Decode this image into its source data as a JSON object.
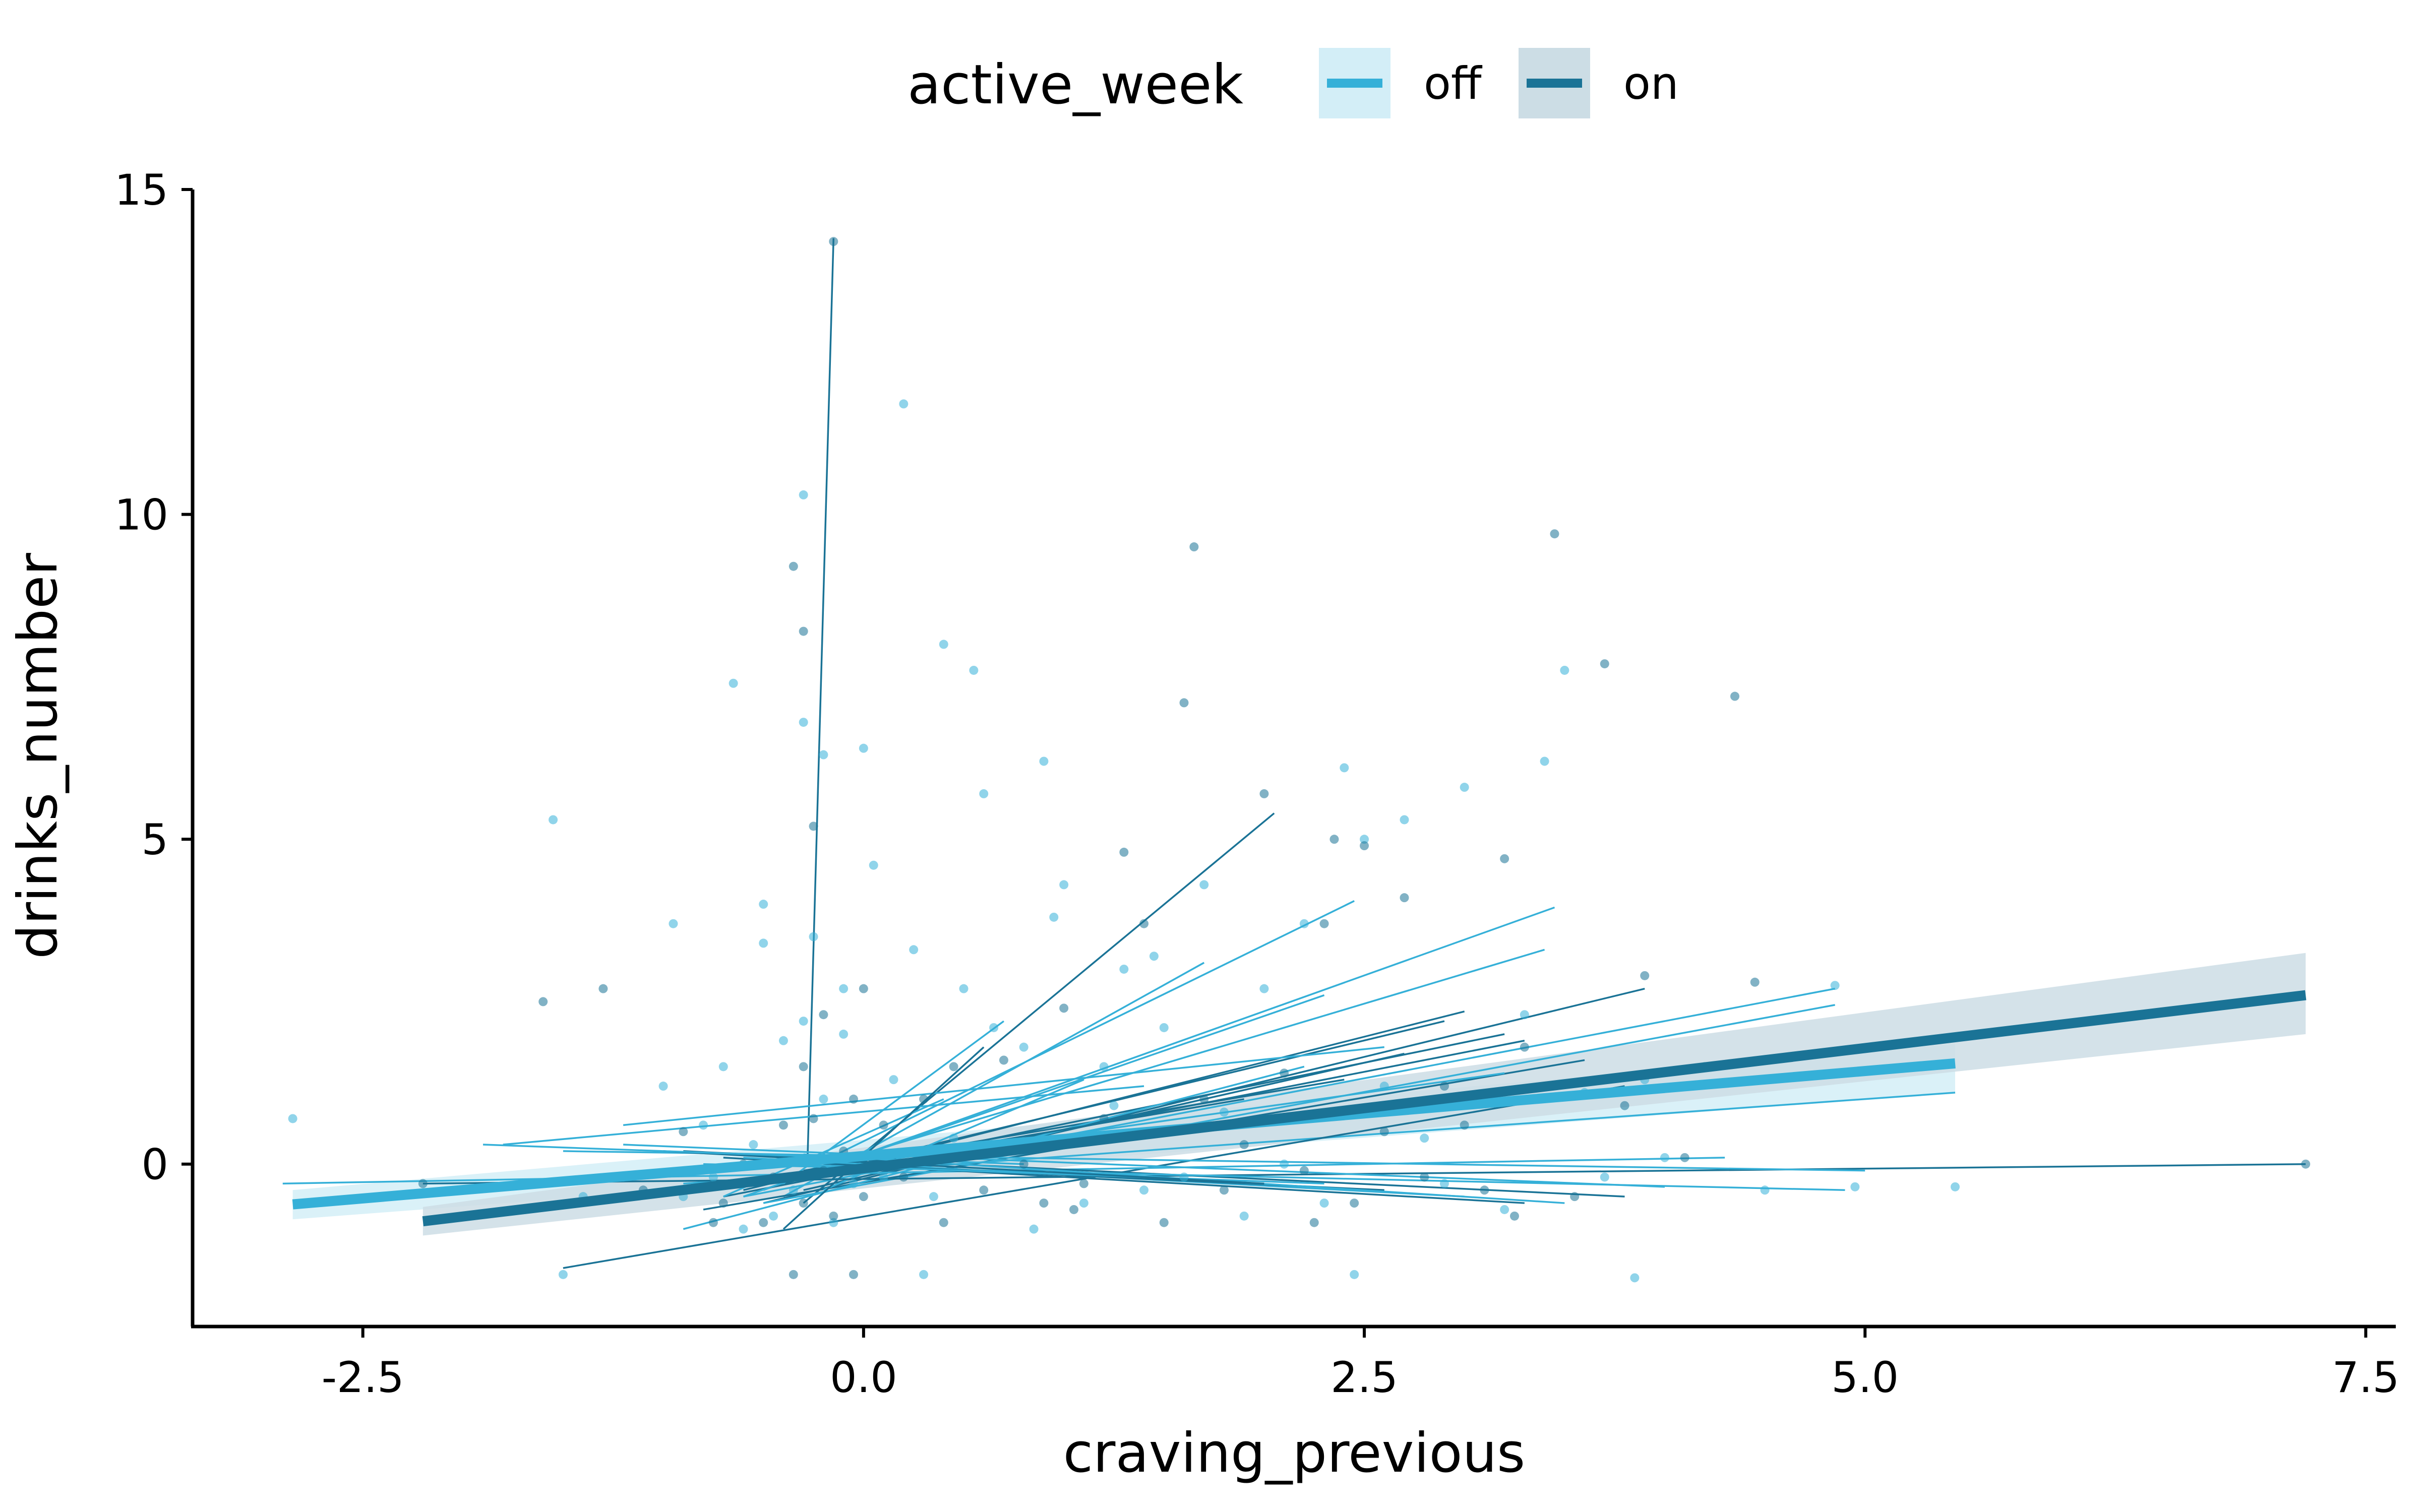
{
  "chart_data": {
    "type": "scatter",
    "xlabel": "craving_previous",
    "ylabel": "drinks_number",
    "xlim": [
      -3.35,
      7.65
    ],
    "ylim": [
      -2.5,
      15
    ],
    "x_ticks": [
      "-2.5",
      "0.0",
      "2.5",
      "5.0",
      "7.5"
    ],
    "x_tick_values": [
      -2.5,
      0,
      2.5,
      5,
      7.5
    ],
    "y_ticks": [
      "0",
      "5",
      "10",
      "15"
    ],
    "y_tick_values": [
      0,
      5,
      10,
      15
    ],
    "grid": false,
    "legend": {
      "title": "active_week",
      "position": "top",
      "entries": [
        {
          "label": "off",
          "color": "#35B0D8",
          "band_color": "#D3EEF7"
        },
        {
          "label": "on",
          "color": "#1A7396",
          "band_color": "#CCDDE5"
        }
      ]
    },
    "series": [
      {
        "name": "off",
        "color": "#35B0D8",
        "fit": {
          "x": [
            -2.85,
            5.45
          ],
          "y": [
            -0.62,
            1.55
          ],
          "band_lower_end": [
            -0.85,
            1.1
          ],
          "band_upper_end": [
            -0.4,
            1.85
          ]
        },
        "points": [
          [
            -2.85,
            0.7
          ],
          [
            -1.55,
            5.3
          ],
          [
            -1.5,
            -1.7
          ],
          [
            -1.4,
            -0.5
          ],
          [
            -1.2,
            -0.2
          ],
          [
            -1.0,
            1.2
          ],
          [
            -0.95,
            3.7
          ],
          [
            -0.9,
            -0.5
          ],
          [
            -0.8,
            0.6
          ],
          [
            -0.75,
            -0.2
          ],
          [
            -0.7,
            1.5
          ],
          [
            -0.65,
            7.4
          ],
          [
            -0.6,
            -1.0
          ],
          [
            -0.55,
            0.3
          ],
          [
            -0.5,
            4.0
          ],
          [
            -0.5,
            3.4
          ],
          [
            -0.45,
            -0.8
          ],
          [
            -0.4,
            1.9
          ],
          [
            -0.35,
            -0.4
          ],
          [
            -0.3,
            2.2
          ],
          [
            -0.3,
            10.3
          ],
          [
            -0.3,
            6.8
          ],
          [
            -0.25,
            3.5
          ],
          [
            -0.2,
            1.0
          ],
          [
            -0.15,
            -0.9
          ],
          [
            -0.1,
            2.0
          ],
          [
            -0.05,
            -0.3
          ],
          [
            0.0,
            6.4
          ],
          [
            0.05,
            4.6
          ],
          [
            0.1,
            -0.2
          ],
          [
            0.2,
            11.7
          ],
          [
            0.25,
            3.3
          ],
          [
            0.3,
            -1.7
          ],
          [
            0.35,
            -0.5
          ],
          [
            0.4,
            8.0
          ],
          [
            0.45,
            0.4
          ],
          [
            0.5,
            2.7
          ],
          [
            0.55,
            7.6
          ],
          [
            0.6,
            5.7
          ],
          [
            0.7,
            0.3
          ],
          [
            0.8,
            1.8
          ],
          [
            0.9,
            6.2
          ],
          [
            0.95,
            3.8
          ],
          [
            1.0,
            4.3
          ],
          [
            1.1,
            -0.6
          ],
          [
            1.2,
            1.5
          ],
          [
            1.3,
            3.0
          ],
          [
            1.4,
            -0.4
          ],
          [
            1.5,
            2.1
          ],
          [
            1.6,
            -0.2
          ],
          [
            1.7,
            4.3
          ],
          [
            1.8,
            0.8
          ],
          [
            1.9,
            -0.8
          ],
          [
            2.0,
            2.7
          ],
          [
            2.1,
            0.0
          ],
          [
            2.2,
            3.7
          ],
          [
            2.3,
            -0.6
          ],
          [
            2.4,
            6.1
          ],
          [
            2.45,
            -1.7
          ],
          [
            2.5,
            5.0
          ],
          [
            2.6,
            1.2
          ],
          [
            2.7,
            5.3
          ],
          [
            2.8,
            0.4
          ],
          [
            2.9,
            -0.3
          ],
          [
            3.0,
            5.8
          ],
          [
            3.1,
            1.0
          ],
          [
            3.2,
            -0.7
          ],
          [
            3.3,
            2.3
          ],
          [
            3.4,
            6.2
          ],
          [
            3.5,
            7.6
          ],
          [
            3.6,
            1.1
          ],
          [
            3.7,
            -0.2
          ],
          [
            3.85,
            -1.75
          ],
          [
            3.9,
            1.3
          ],
          [
            4.0,
            0.1
          ],
          [
            4.2,
            1.5
          ],
          [
            4.5,
            -0.4
          ],
          [
            4.85,
            2.75
          ],
          [
            4.95,
            -0.35
          ],
          [
            5.45,
            -0.35
          ],
          [
            -0.2,
            6.3
          ],
          [
            -0.1,
            2.7
          ],
          [
            0.15,
            1.3
          ],
          [
            0.65,
            2.1
          ],
          [
            0.85,
            -1.0
          ],
          [
            1.25,
            0.9
          ],
          [
            1.45,
            3.2
          ]
        ]
      },
      {
        "name": "on",
        "color": "#1A7396",
        "fit": {
          "x": [
            -2.2,
            7.2
          ],
          "y": [
            -0.88,
            2.6
          ],
          "band_lower_end": [
            -1.1,
            2.0
          ],
          "band_upper_end": [
            -0.66,
            3.25
          ]
        },
        "points": [
          [
            -2.2,
            -0.3
          ],
          [
            -1.6,
            2.5
          ],
          [
            -1.3,
            2.7
          ],
          [
            -1.1,
            -0.4
          ],
          [
            -0.9,
            0.5
          ],
          [
            -0.75,
            -0.9
          ],
          [
            -0.7,
            -0.6
          ],
          [
            -0.6,
            0.0
          ],
          [
            -0.5,
            -0.9
          ],
          [
            -0.45,
            -0.2
          ],
          [
            -0.4,
            0.6
          ],
          [
            -0.35,
            9.2
          ],
          [
            -0.35,
            -1.7
          ],
          [
            -0.3,
            8.2
          ],
          [
            -0.3,
            1.5
          ],
          [
            -0.3,
            -0.6
          ],
          [
            -0.25,
            0.7
          ],
          [
            -0.2,
            2.3
          ],
          [
            -0.2,
            -0.1
          ],
          [
            -0.15,
            -0.8
          ],
          [
            -0.1,
            0.2
          ],
          [
            -0.05,
            1.0
          ],
          [
            -0.05,
            -1.7
          ],
          [
            0.0,
            -0.5
          ],
          [
            0.1,
            0.6
          ],
          [
            0.2,
            -0.2
          ],
          [
            0.3,
            1.0
          ],
          [
            0.4,
            -0.9
          ],
          [
            0.5,
            0.2
          ],
          [
            0.6,
            -0.4
          ],
          [
            0.7,
            1.6
          ],
          [
            0.8,
            0.0
          ],
          [
            0.9,
            -0.6
          ],
          [
            1.0,
            2.4
          ],
          [
            1.1,
            -0.3
          ],
          [
            1.2,
            0.7
          ],
          [
            1.3,
            4.8
          ],
          [
            1.4,
            3.7
          ],
          [
            1.5,
            -0.9
          ],
          [
            1.6,
            7.1
          ],
          [
            1.65,
            9.5
          ],
          [
            1.7,
            1.0
          ],
          [
            1.8,
            -0.4
          ],
          [
            1.9,
            0.3
          ],
          [
            2.0,
            5.7
          ],
          [
            2.1,
            1.4
          ],
          [
            2.2,
            -0.1
          ],
          [
            2.3,
            3.7
          ],
          [
            2.35,
            5.0
          ],
          [
            2.45,
            -0.6
          ],
          [
            2.5,
            4.9
          ],
          [
            2.6,
            0.5
          ],
          [
            2.7,
            4.1
          ],
          [
            2.8,
            -0.2
          ],
          [
            2.9,
            1.2
          ],
          [
            3.0,
            0.6
          ],
          [
            3.1,
            -0.4
          ],
          [
            3.2,
            4.7
          ],
          [
            3.3,
            1.8
          ],
          [
            3.45,
            9.7
          ],
          [
            3.55,
            -0.5
          ],
          [
            3.7,
            7.7
          ],
          [
            3.8,
            0.9
          ],
          [
            3.9,
            2.9
          ],
          [
            4.1,
            0.1
          ],
          [
            4.35,
            7.2
          ],
          [
            4.45,
            2.8
          ],
          [
            7.2,
            0.0
          ],
          [
            -0.15,
            14.2
          ],
          [
            -0.25,
            5.2
          ],
          [
            0.0,
            2.7
          ],
          [
            0.45,
            1.5
          ],
          [
            1.05,
            -0.7
          ],
          [
            2.25,
            -0.9
          ],
          [
            3.25,
            -0.8
          ]
        ]
      }
    ],
    "lines": [
      {
        "group": "on",
        "x": [
          -0.28,
          -0.15
        ],
        "y": [
          0.05,
          14.25
        ]
      },
      {
        "group": "on",
        "x": [
          -0.3,
          2.05
        ],
        "y": [
          -0.6,
          5.4
        ]
      },
      {
        "group": "off",
        "x": [
          -0.2,
          2.45
        ],
        "y": [
          0.05,
          4.05
        ]
      },
      {
        "group": "off",
        "x": [
          -0.5,
          3.45
        ],
        "y": [
          -0.4,
          3.95
        ]
      },
      {
        "group": "off",
        "x": [
          -0.5,
          3.4
        ],
        "y": [
          -0.3,
          3.3
        ]
      },
      {
        "group": "off",
        "x": [
          -0.4,
          1.7
        ],
        "y": [
          -0.5,
          3.1
        ]
      },
      {
        "group": "on",
        "x": [
          -0.5,
          3.9
        ],
        "y": [
          -0.6,
          2.7
        ]
      },
      {
        "group": "off",
        "x": [
          -0.6,
          4.85
        ],
        "y": [
          -0.5,
          2.7
        ]
      },
      {
        "group": "off",
        "x": [
          -0.5,
          4.85
        ],
        "y": [
          -0.6,
          2.45
        ]
      },
      {
        "group": "on",
        "x": [
          -0.4,
          3.0
        ],
        "y": [
          -0.3,
          2.35
        ]
      },
      {
        "group": "on",
        "x": [
          -0.6,
          2.9
        ],
        "y": [
          -0.4,
          2.2
        ]
      },
      {
        "group": "on",
        "x": [
          -0.3,
          3.2
        ],
        "y": [
          -0.2,
          2.0
        ]
      },
      {
        "group": "on",
        "x": [
          -0.7,
          3.3
        ],
        "y": [
          -0.5,
          1.9
        ]
      },
      {
        "group": "off",
        "x": [
          -0.6,
          2.3
        ],
        "y": [
          -0.5,
          2.6
        ]
      },
      {
        "group": "on",
        "x": [
          -0.3,
          2.7
        ],
        "y": [
          -0.4,
          1.7
        ]
      },
      {
        "group": "on",
        "x": [
          -0.8,
          3.6
        ],
        "y": [
          -0.7,
          1.6
        ]
      },
      {
        "group": "off",
        "x": [
          -0.5,
          3.2
        ],
        "y": [
          -0.2,
          1.4
        ]
      },
      {
        "group": "off",
        "x": [
          -0.9,
          5.45
        ],
        "y": [
          -0.3,
          1.1
        ]
      },
      {
        "group": "on",
        "x": [
          -0.3,
          2.4
        ],
        "y": [
          -0.1,
          1.3
        ]
      },
      {
        "group": "off",
        "x": [
          -1.2,
          2.6
        ],
        "y": [
          0.6,
          1.8
        ]
      },
      {
        "group": "off",
        "x": [
          -1.8,
          1.4
        ],
        "y": [
          0.3,
          1.2
        ]
      },
      {
        "group": "on",
        "x": [
          -1.5,
          3.8
        ],
        "y": [
          -1.6,
          1.2
        ]
      },
      {
        "group": "off",
        "x": [
          -0.9,
          2.2
        ],
        "y": [
          -1.0,
          1.5
        ]
      },
      {
        "group": "on",
        "x": [
          -0.6,
          1.9
        ],
        "y": [
          -0.3,
          1.0
        ]
      },
      {
        "group": "off",
        "x": [
          -0.4,
          0.7
        ],
        "y": [
          -0.3,
          2.2
        ]
      },
      {
        "group": "off",
        "x": [
          -0.7,
          0.4
        ],
        "y": [
          -0.5,
          1.0
        ]
      },
      {
        "group": "off",
        "x": [
          -0.2,
          1.1
        ],
        "y": [
          -0.4,
          1.3
        ]
      },
      {
        "group": "on",
        "x": [
          -0.4,
          0.6
        ],
        "y": [
          -1.0,
          1.8
        ]
      },
      {
        "group": "on",
        "x": [
          -2.2,
          7.2
        ],
        "y": [
          -0.3,
          0.0
        ]
      },
      {
        "group": "off",
        "x": [
          -2.9,
          4.3
        ],
        "y": [
          -0.3,
          0.1
        ]
      },
      {
        "group": "off",
        "x": [
          -1.5,
          5.0
        ],
        "y": [
          0.2,
          -0.1
        ]
      },
      {
        "group": "off",
        "x": [
          -1.2,
          4.0
        ],
        "y": [
          0.3,
          -0.35
        ]
      },
      {
        "group": "on",
        "x": [
          -0.9,
          3.8
        ],
        "y": [
          0.2,
          -0.5
        ]
      },
      {
        "group": "off",
        "x": [
          -0.8,
          4.9
        ],
        "y": [
          0.0,
          -0.4
        ]
      },
      {
        "group": "on",
        "x": [
          -0.7,
          3.3
        ],
        "y": [
          0.1,
          -0.6
        ]
      },
      {
        "group": "off",
        "x": [
          -0.6,
          3.0
        ],
        "y": [
          0.1,
          -0.5
        ]
      },
      {
        "group": "on",
        "x": [
          -0.5,
          2.6
        ],
        "y": [
          0.05,
          -0.4
        ]
      },
      {
        "group": "off",
        "x": [
          -0.4,
          2.3
        ],
        "y": [
          0.0,
          -0.3
        ]
      },
      {
        "group": "off",
        "x": [
          -0.3,
          3.5
        ],
        "y": [
          0.15,
          -0.6
        ]
      },
      {
        "group": "on",
        "x": [
          -1.0,
          2.0
        ],
        "y": [
          0.2,
          -0.3
        ]
      },
      {
        "group": "off",
        "x": [
          -1.9,
          0.8
        ],
        "y": [
          0.3,
          0.0
        ]
      }
    ]
  }
}
